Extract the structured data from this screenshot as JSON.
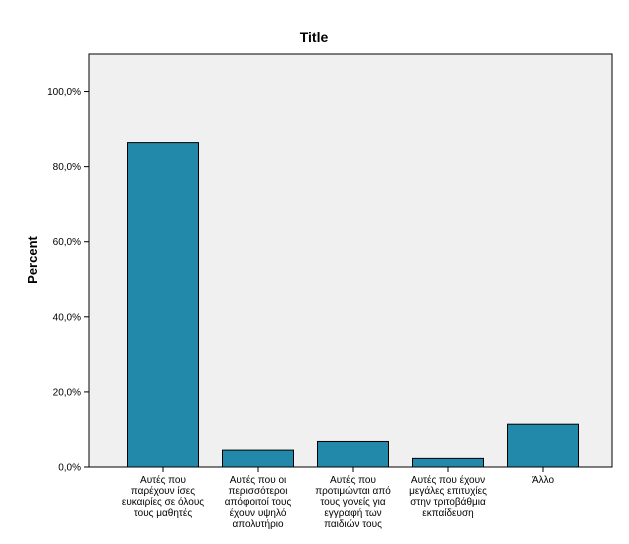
{
  "chart_data": {
    "type": "bar",
    "title": "Title",
    "xlabel": "",
    "ylabel": "Percent",
    "ylim": [
      0,
      110
    ],
    "yticks": [
      0,
      20,
      40,
      60,
      80,
      100
    ],
    "ytick_labels": [
      "0,0%",
      "20,0%",
      "40,0%",
      "60,0%",
      "80,0%",
      "100,0%"
    ],
    "categories": [
      [
        "Αυτές που",
        "παρέχουν ίσες",
        "ευκαιρίες σε όλους",
        "τους μαθητές"
      ],
      [
        "Αυτές που οι",
        "περισσότεροι",
        "απόφοιτοί τους",
        "έχουν υψηλό",
        "απολυτήριο"
      ],
      [
        "Αυτές που",
        "προτιμώνται από",
        "τους γονείς για",
        "εγγραφή των",
        "παιδιών τους"
      ],
      [
        "Αυτές που έχουν",
        "μεγάλες επιτυχίες",
        "στην τριτοβάθμια",
        "εκπαίδευση"
      ],
      [
        "Άλλο"
      ]
    ],
    "values": [
      86.4,
      4.5,
      6.8,
      2.3,
      11.4
    ],
    "bar_color": "#2389aa",
    "plot_background": "#f0f0f0",
    "grid": false,
    "legend": "none"
  }
}
